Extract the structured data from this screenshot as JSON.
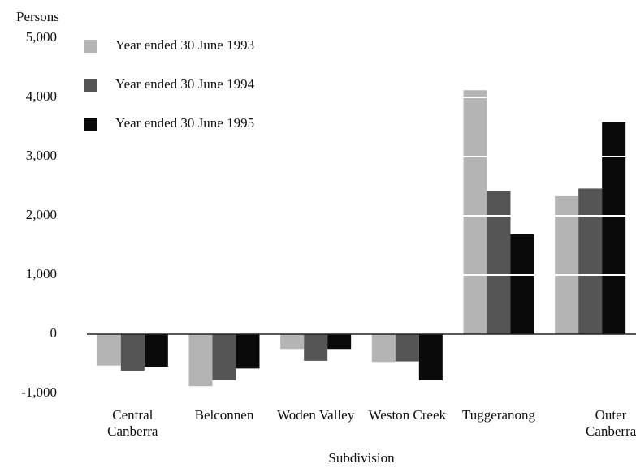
{
  "chart_data": {
    "type": "bar",
    "y_label": "Persons",
    "x_label": "Subdivision",
    "categories": [
      "Central Canberra",
      "Belconnen",
      "Woden Valley",
      "Weston Creek",
      "Tuggeranong",
      "Outer Canberra"
    ],
    "series": [
      {
        "name": "Year ended 30 June 1993",
        "color": "#b4b4b4",
        "values": [
          -530,
          -880,
          -250,
          -470,
          4120,
          2330
        ]
      },
      {
        "name": "Year ended 30 June 1994",
        "color": "#555555",
        "values": [
          -620,
          -780,
          -450,
          -460,
          2420,
          2460
        ]
      },
      {
        "name": "Year ended 30 June 1995",
        "color": "#0a0a0a",
        "values": [
          -550,
          -580,
          -250,
          -780,
          1690,
          3580
        ]
      }
    ],
    "ylim": [
      -1000,
      5000
    ],
    "yticks": [
      {
        "value": -1000,
        "label": "-1,000"
      },
      0,
      {
        "value": 1000,
        "label": "1,000"
      },
      {
        "value": 2000,
        "label": "2,000"
      },
      {
        "value": 3000,
        "label": "3,000"
      },
      {
        "value": 4000,
        "label": "4,000"
      },
      {
        "value": 5000,
        "label": "5,000"
      }
    ],
    "grid": true,
    "grid_color": "#ffffff",
    "legend": "top-left"
  }
}
